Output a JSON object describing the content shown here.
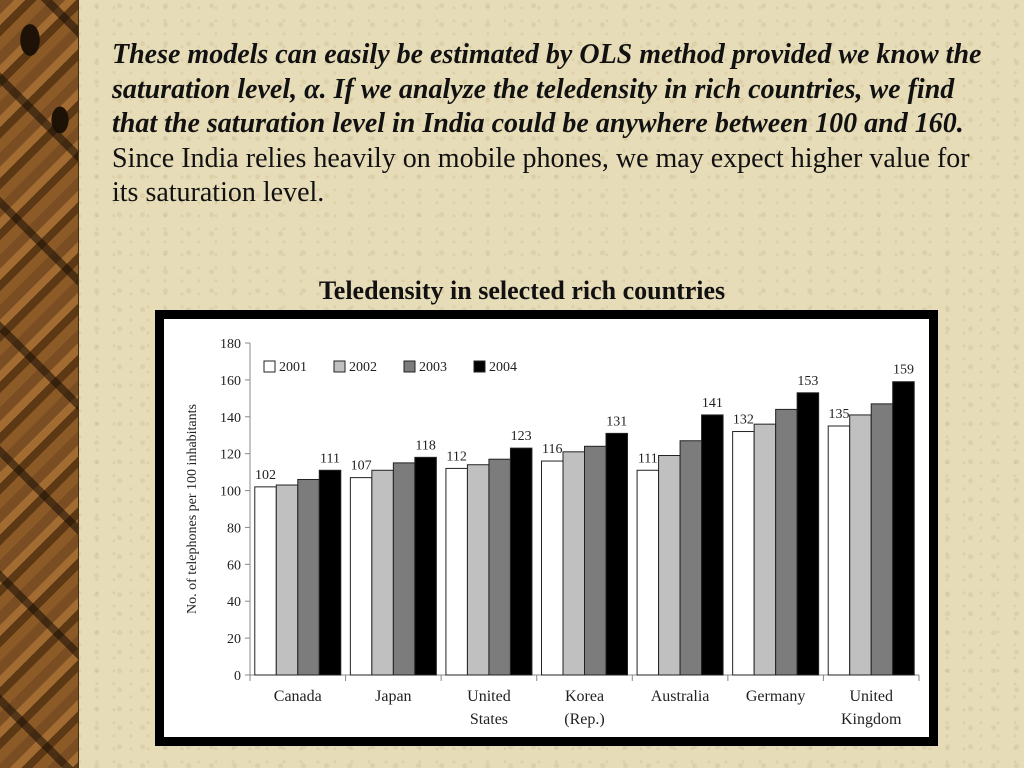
{
  "paragraph": {
    "emphasis": "These models can easily be estimated by OLS method provided we know the saturation level, α. If we analyze the teledensity in rich countries, we find that the saturation level in India could be anywhere between 100 and 160.",
    "rest": " Since India relies heavily on mobile phones, we may expect higher value for its saturation level."
  },
  "chart_data": {
    "type": "bar",
    "title": "Teledensity in selected rich countries",
    "ylabel": "No. of telephones per 100 inhabitants",
    "xlabel": "",
    "ylim": [
      0,
      180
    ],
    "yticks": [
      "0",
      "20",
      "40",
      "60",
      "80",
      "100",
      "120",
      "140",
      "160",
      "180"
    ],
    "grid": false,
    "legend_position": "top-left",
    "categories": [
      [
        "Canada"
      ],
      [
        "Japan"
      ],
      [
        "United",
        "States"
      ],
      [
        "Korea",
        "(Rep.)"
      ],
      [
        "Australia"
      ],
      [
        "Germany"
      ],
      [
        "United",
        "Kingdom"
      ]
    ],
    "series": [
      {
        "name": "2001",
        "color": "#ffffff",
        "values": [
          102,
          107,
          112,
          116,
          111,
          132,
          135
        ]
      },
      {
        "name": "2002",
        "color": "#c0c0c0",
        "values": [
          103,
          111,
          114,
          121,
          119,
          136,
          141
        ]
      },
      {
        "name": "2003",
        "color": "#7c7c7c",
        "values": [
          106,
          115,
          117,
          124,
          127,
          144,
          147
        ]
      },
      {
        "name": "2004",
        "color": "#000000",
        "values": [
          111,
          118,
          123,
          131,
          141,
          153,
          159
        ]
      }
    ],
    "data_labels": {
      "2001": [
        "102",
        "107",
        "112",
        "116",
        "111",
        "132",
        "135"
      ],
      "2004": [
        "111",
        "118",
        "123",
        "131",
        "141",
        "153",
        "159"
      ]
    }
  }
}
